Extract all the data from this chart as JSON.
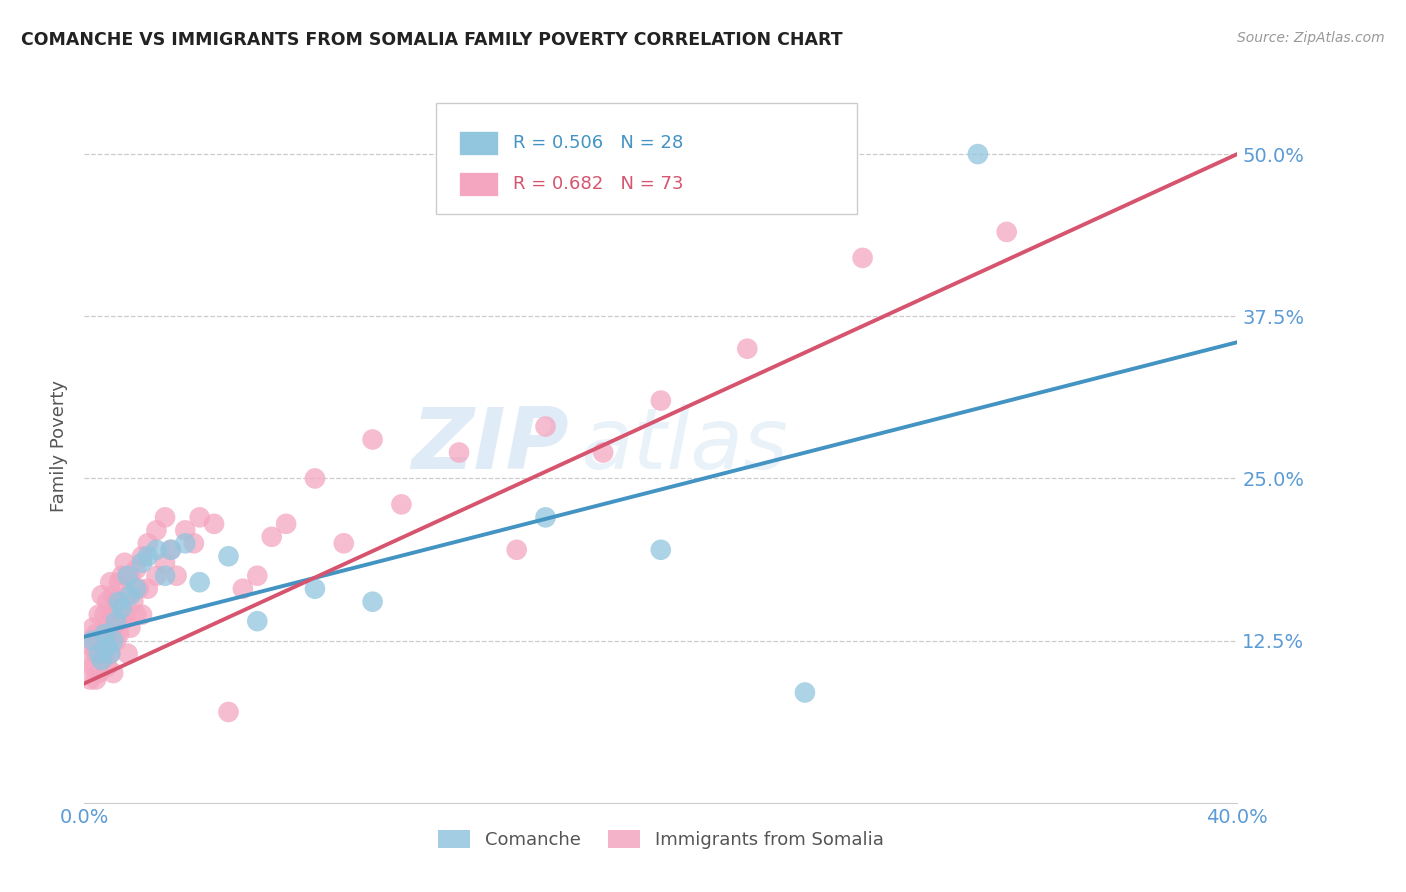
{
  "title": "COMANCHE VS IMMIGRANTS FROM SOMALIA FAMILY POVERTY CORRELATION CHART",
  "source": "Source: ZipAtlas.com",
  "ylabel_label": "Family Poverty",
  "x_min": 0.0,
  "x_max": 0.4,
  "y_min": 0.0,
  "y_max": 0.55,
  "x_ticks": [
    0.0,
    0.1,
    0.2,
    0.3,
    0.4
  ],
  "x_tick_labels": [
    "0.0%",
    "",
    "",
    "",
    "40.0%"
  ],
  "y_ticks": [
    0.0,
    0.125,
    0.25,
    0.375,
    0.5
  ],
  "y_tick_labels": [
    "",
    "12.5%",
    "25.0%",
    "37.5%",
    "50.0%"
  ],
  "blue_R": 0.506,
  "blue_N": 28,
  "pink_R": 0.682,
  "pink_N": 73,
  "blue_color": "#92c5de",
  "pink_color": "#f4a6c0",
  "blue_line_color": "#4393c3",
  "pink_line_color": "#d6546e",
  "watermark_zip": "ZIP",
  "watermark_atlas": "atlas",
  "legend_label_blue": "Comanche",
  "legend_label_pink": "Immigrants from Somalia",
  "blue_scatter_x": [
    0.003,
    0.005,
    0.006,
    0.007,
    0.008,
    0.009,
    0.01,
    0.011,
    0.012,
    0.013,
    0.015,
    0.016,
    0.018,
    0.02,
    0.022,
    0.025,
    0.028,
    0.03,
    0.035,
    0.04,
    0.05,
    0.06,
    0.08,
    0.1,
    0.16,
    0.2,
    0.25,
    0.31
  ],
  "blue_scatter_y": [
    0.125,
    0.115,
    0.11,
    0.13,
    0.12,
    0.115,
    0.125,
    0.14,
    0.155,
    0.15,
    0.175,
    0.16,
    0.165,
    0.185,
    0.19,
    0.195,
    0.175,
    0.195,
    0.2,
    0.17,
    0.19,
    0.14,
    0.165,
    0.155,
    0.22,
    0.195,
    0.085,
    0.5
  ],
  "pink_scatter_x": [
    0.001,
    0.002,
    0.002,
    0.003,
    0.003,
    0.003,
    0.004,
    0.004,
    0.004,
    0.005,
    0.005,
    0.005,
    0.006,
    0.006,
    0.006,
    0.007,
    0.007,
    0.008,
    0.008,
    0.008,
    0.009,
    0.009,
    0.009,
    0.01,
    0.01,
    0.01,
    0.011,
    0.011,
    0.012,
    0.012,
    0.013,
    0.013,
    0.014,
    0.014,
    0.015,
    0.015,
    0.016,
    0.016,
    0.017,
    0.018,
    0.018,
    0.019,
    0.02,
    0.02,
    0.022,
    0.022,
    0.025,
    0.025,
    0.028,
    0.028,
    0.03,
    0.032,
    0.035,
    0.038,
    0.04,
    0.045,
    0.05,
    0.055,
    0.06,
    0.065,
    0.07,
    0.08,
    0.09,
    0.1,
    0.11,
    0.13,
    0.15,
    0.16,
    0.18,
    0.2,
    0.23,
    0.27,
    0.32
  ],
  "pink_scatter_y": [
    0.11,
    0.095,
    0.125,
    0.105,
    0.12,
    0.135,
    0.095,
    0.115,
    0.13,
    0.1,
    0.12,
    0.145,
    0.11,
    0.13,
    0.16,
    0.115,
    0.145,
    0.105,
    0.13,
    0.155,
    0.115,
    0.145,
    0.17,
    0.1,
    0.135,
    0.16,
    0.125,
    0.155,
    0.13,
    0.17,
    0.14,
    0.175,
    0.145,
    0.185,
    0.115,
    0.16,
    0.135,
    0.175,
    0.155,
    0.145,
    0.18,
    0.165,
    0.145,
    0.19,
    0.165,
    0.2,
    0.175,
    0.21,
    0.185,
    0.22,
    0.195,
    0.175,
    0.21,
    0.2,
    0.22,
    0.215,
    0.07,
    0.165,
    0.175,
    0.205,
    0.215,
    0.25,
    0.2,
    0.28,
    0.23,
    0.27,
    0.195,
    0.29,
    0.27,
    0.31,
    0.35,
    0.42,
    0.44
  ],
  "grid_color": "#cccccc",
  "background_color": "#ffffff",
  "tick_label_color": "#5b9bd5",
  "axis_label_color": "#555555"
}
